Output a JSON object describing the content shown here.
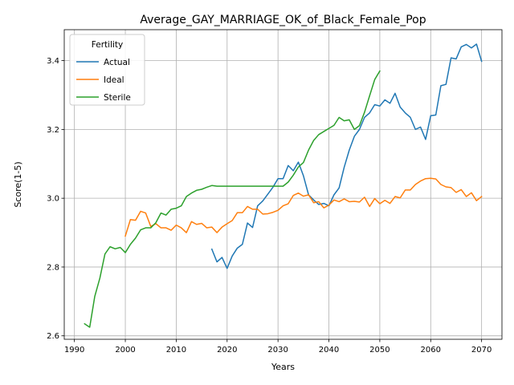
{
  "chart_data": {
    "type": "line",
    "title": "Average_GAY_MARRIAGE_OK_of_Black_Female_Pop",
    "xlabel": "Years",
    "ylabel": "Score(1-5)",
    "xlim": [
      1988,
      2074
    ],
    "ylim": [
      2.59,
      3.49
    ],
    "xticks": [
      1990,
      2000,
      2010,
      2020,
      2030,
      2040,
      2050,
      2060,
      2070
    ],
    "yticks": [
      2.6,
      2.8,
      3.0,
      3.2,
      3.4
    ],
    "ytick_labels": [
      "2.6",
      "2.8",
      "3.0",
      "3.2",
      "3.4"
    ],
    "grid": true,
    "legend": {
      "title": "Fertility",
      "placement": "top-left"
    },
    "series": [
      {
        "name": "Actual",
        "color": "#1f77b4",
        "x": [
          2017,
          2018,
          2019,
          2020,
          2021,
          2022,
          2023,
          2024,
          2025,
          2026,
          2027,
          2028,
          2029,
          2030,
          2031,
          2032,
          2033,
          2034,
          2035,
          2036,
          2037,
          2038,
          2039,
          2040,
          2041,
          2042,
          2043,
          2044,
          2045,
          2046,
          2047,
          2048,
          2049,
          2050,
          2051,
          2052,
          2053,
          2054,
          2055,
          2056,
          2057,
          2058,
          2059,
          2060,
          2061,
          2062,
          2063,
          2064,
          2065,
          2066,
          2067,
          2068,
          2069,
          2070
        ],
        "y": [
          2.852,
          2.815,
          2.828,
          2.796,
          2.832,
          2.855,
          2.866,
          2.928,
          2.915,
          2.978,
          2.992,
          3.012,
          3.032,
          3.057,
          3.057,
          3.095,
          3.08,
          3.105,
          3.065,
          3.01,
          2.995,
          2.982,
          2.985,
          2.978,
          3.01,
          3.03,
          3.09,
          3.14,
          3.18,
          3.2,
          3.235,
          3.248,
          3.272,
          3.268,
          3.286,
          3.276,
          3.305,
          3.265,
          3.248,
          3.235,
          3.2,
          3.207,
          3.171,
          3.24,
          3.242,
          3.327,
          3.331,
          3.408,
          3.405,
          3.44,
          3.447,
          3.437,
          3.448,
          3.398
        ]
      },
      {
        "name": "Ideal",
        "color": "#ff7f0e",
        "x": [
          2000,
          2001,
          2002,
          2003,
          2004,
          2005,
          2006,
          2007,
          2008,
          2009,
          2010,
          2011,
          2012,
          2013,
          2014,
          2015,
          2016,
          2017,
          2018,
          2019,
          2020,
          2021,
          2022,
          2023,
          2024,
          2025,
          2026,
          2027,
          2028,
          2029,
          2030,
          2031,
          2032,
          2033,
          2034,
          2035,
          2036,
          2037,
          2038,
          2039,
          2040,
          2041,
          2042,
          2043,
          2044,
          2045,
          2046,
          2047,
          2048,
          2049,
          2050,
          2051,
          2052,
          2053,
          2054,
          2055,
          2056,
          2057,
          2058,
          2059,
          2060,
          2061,
          2062,
          2063,
          2064,
          2065,
          2066,
          2067,
          2068,
          2069,
          2070
        ],
        "y": [
          2.89,
          2.938,
          2.936,
          2.962,
          2.957,
          2.918,
          2.926,
          2.914,
          2.914,
          2.907,
          2.922,
          2.914,
          2.9,
          2.932,
          2.924,
          2.927,
          2.914,
          2.916,
          2.9,
          2.916,
          2.926,
          2.935,
          2.958,
          2.958,
          2.976,
          2.968,
          2.968,
          2.954,
          2.955,
          2.959,
          2.965,
          2.978,
          2.984,
          3.008,
          3.015,
          3.006,
          3.01,
          2.987,
          2.99,
          2.972,
          2.98,
          2.995,
          2.99,
          2.998,
          2.99,
          2.991,
          2.989,
          3.003,
          2.976,
          2.999,
          2.984,
          2.994,
          2.985,
          3.005,
          3.001,
          3.024,
          3.024,
          3.04,
          3.05,
          3.057,
          3.058,
          3.056,
          3.04,
          3.033,
          3.031,
          3.017,
          3.025,
          3.005,
          3.016,
          2.993,
          3.005
        ]
      },
      {
        "name": "Sterile",
        "color": "#2ca02c",
        "x": [
          1992,
          1993,
          1994,
          1995,
          1996,
          1997,
          1998,
          1999,
          2000,
          2001,
          2002,
          2003,
          2004,
          2005,
          2006,
          2007,
          2008,
          2009,
          2010,
          2011,
          2012,
          2013,
          2014,
          2015,
          2016,
          2017,
          2018,
          2019,
          2020,
          2021,
          2022,
          2023,
          2024,
          2025,
          2026,
          2027,
          2028,
          2029,
          2030,
          2031,
          2032,
          2033,
          2034,
          2035,
          2036,
          2037,
          2038,
          2039,
          2040,
          2041,
          2042,
          2043,
          2044,
          2045,
          2046,
          2047,
          2048,
          2049,
          2050
        ],
        "y": [
          2.635,
          2.625,
          2.715,
          2.768,
          2.838,
          2.859,
          2.853,
          2.857,
          2.842,
          2.866,
          2.884,
          2.908,
          2.914,
          2.914,
          2.929,
          2.957,
          2.951,
          2.968,
          2.971,
          2.978,
          3.005,
          3.015,
          3.023,
          3.026,
          3.032,
          3.037,
          3.035,
          3.035,
          3.035,
          3.035,
          3.035,
          3.035,
          3.035,
          3.035,
          3.035,
          3.035,
          3.035,
          3.035,
          3.035,
          3.035,
          3.047,
          3.067,
          3.091,
          3.104,
          3.14,
          3.168,
          3.185,
          3.194,
          3.203,
          3.212,
          3.235,
          3.225,
          3.228,
          3.2,
          3.211,
          3.25,
          3.298,
          3.345,
          3.37
        ]
      }
    ]
  }
}
